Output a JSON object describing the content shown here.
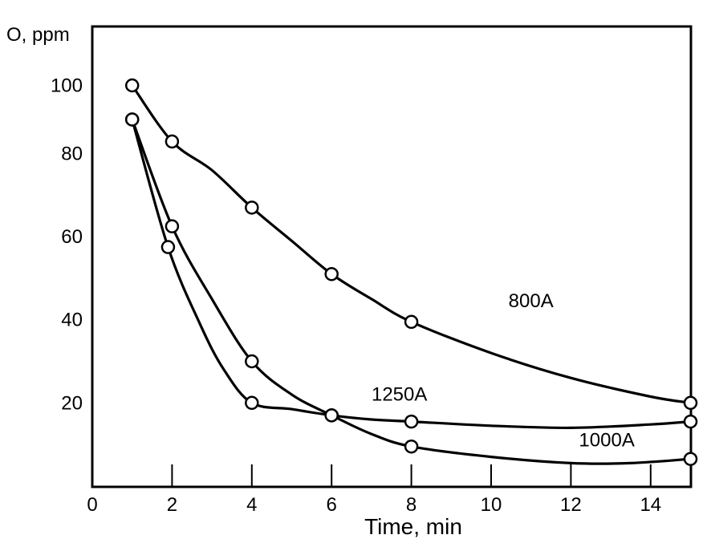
{
  "chart_data": {
    "type": "line",
    "title": "",
    "xlabel": "Time, min",
    "ylabel": "O, ppm",
    "xlim": [
      0,
      15
    ],
    "x_ticks": [
      0,
      2,
      4,
      6,
      8,
      10,
      12,
      14
    ],
    "y_ticks": [
      20,
      40,
      60,
      80,
      100
    ],
    "grid": false,
    "series": [
      {
        "name": "800A",
        "points": [
          [
            1,
            100
          ],
          [
            2,
            86
          ],
          [
            4,
            67
          ],
          [
            6,
            51
          ],
          [
            8,
            39.5
          ],
          [
            15,
            20
          ]
        ],
        "curve": [
          [
            1,
            100
          ],
          [
            2,
            86
          ],
          [
            3,
            76
          ],
          [
            4,
            67
          ],
          [
            5,
            59
          ],
          [
            6,
            51
          ],
          [
            7,
            45
          ],
          [
            8,
            39.5
          ],
          [
            10,
            32
          ],
          [
            12,
            26
          ],
          [
            14,
            21.5
          ],
          [
            15,
            20
          ]
        ]
      },
      {
        "name": "1250A",
        "points": [
          [
            1,
            91.5
          ],
          [
            1.9,
            57.5
          ],
          [
            4,
            20
          ],
          [
            6,
            17
          ],
          [
            8,
            15.5
          ],
          [
            15,
            15.5
          ]
        ],
        "curve": [
          [
            1,
            91.5
          ],
          [
            1.9,
            57.5
          ],
          [
            2.7,
            39
          ],
          [
            3.3,
            28
          ],
          [
            4,
            20
          ],
          [
            5,
            18.5
          ],
          [
            6,
            17
          ],
          [
            7,
            16
          ],
          [
            8,
            15.5
          ],
          [
            10,
            14.5
          ],
          [
            12,
            14
          ],
          [
            14,
            14.8
          ],
          [
            15,
            15.5
          ]
        ]
      },
      {
        "name": "1000A",
        "points": [
          [
            1,
            91.5
          ],
          [
            2,
            62.5
          ],
          [
            4,
            30
          ],
          [
            6,
            17
          ],
          [
            8,
            9.5
          ],
          [
            15,
            6.5
          ]
        ],
        "curve": [
          [
            1,
            91.5
          ],
          [
            2,
            62.5
          ],
          [
            3,
            45
          ],
          [
            4,
            30
          ],
          [
            5,
            22
          ],
          [
            6,
            17
          ],
          [
            7,
            12.5
          ],
          [
            8,
            9.5
          ],
          [
            10,
            7
          ],
          [
            12,
            5.5
          ],
          [
            13.5,
            5.5
          ],
          [
            15,
            6.5
          ]
        ]
      }
    ],
    "annotations": [
      {
        "series": "800A",
        "text": "800A",
        "x": 11.0,
        "y": 43
      },
      {
        "series": "1250A",
        "text": "1250A",
        "x": 7.7,
        "y": 20.5
      },
      {
        "series": "1000A",
        "text": "1000A",
        "x": 12.9,
        "y": 9.5
      }
    ]
  }
}
